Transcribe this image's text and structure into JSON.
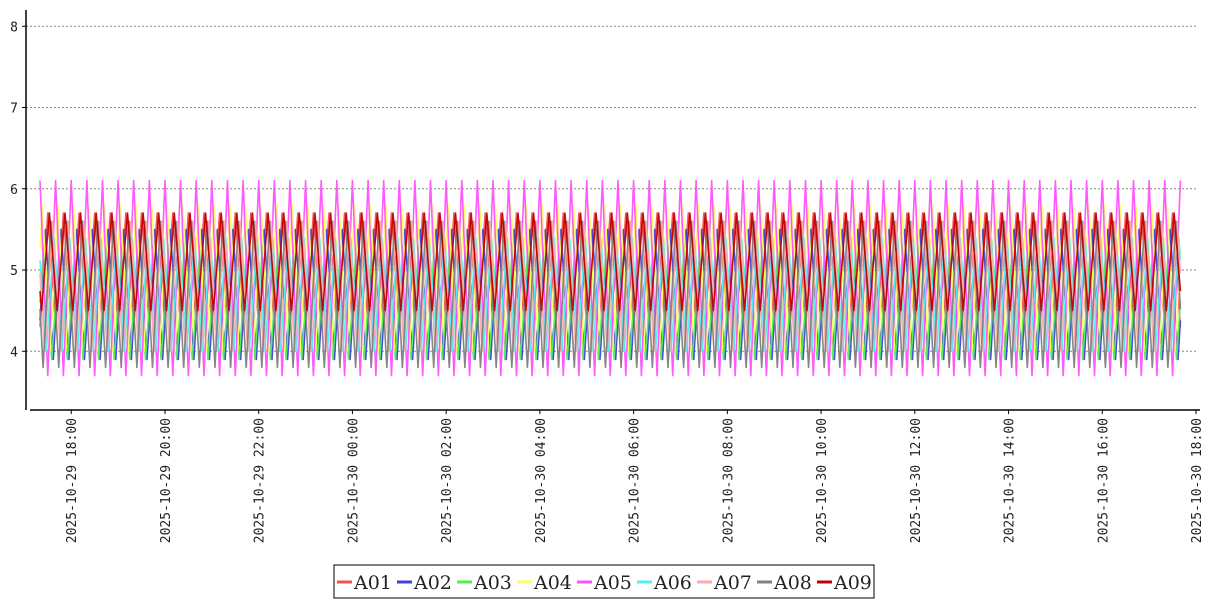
{
  "chart_data": {
    "type": "line",
    "title": "",
    "xlabel": "",
    "ylabel": "",
    "ylim": [
      3.4,
      8.2
    ],
    "y_ticks": [
      "4",
      "5",
      "6",
      "7",
      "8"
    ],
    "x_range": [
      "2025-10-29 17:20",
      "2025-10-30 18:00"
    ],
    "x_ticks": [
      "2025-10-29 18:00",
      "2025-10-29 20:00",
      "2025-10-29 22:00",
      "2025-10-30 00:00",
      "2025-10-30 02:00",
      "2025-10-30 04:00",
      "2025-10-30 06:00",
      "2025-10-30 08:00",
      "2025-10-30 10:00",
      "2025-10-30 12:00",
      "2025-10-30 14:00",
      "2025-10-30 16:00",
      "2025-10-30 18:00"
    ],
    "grid": "horizontal-dotted",
    "legend_position": "bottom-center",
    "series": [
      {
        "name": "A01",
        "color": "#f05050",
        "min": 4.3,
        "max": 5.7,
        "phase": 0.0
      },
      {
        "name": "A02",
        "color": "#4040e0",
        "min": 3.9,
        "max": 5.5,
        "phase": 0.15
      },
      {
        "name": "A03",
        "color": "#50f050",
        "min": 3.9,
        "max": 5.3,
        "phase": 0.25
      },
      {
        "name": "A04",
        "color": "#ffff60",
        "min": 4.0,
        "max": 5.8,
        "phase": 0.35
      },
      {
        "name": "A05",
        "color": "#ff50ff",
        "min": 3.7,
        "max": 6.1,
        "phase": 0.5
      },
      {
        "name": "A06",
        "color": "#50f0f0",
        "min": 4.0,
        "max": 5.4,
        "phase": 0.6
      },
      {
        "name": "A07",
        "color": "#ffaaaa",
        "min": 4.0,
        "max": 5.6,
        "phase": 0.7
      },
      {
        "name": "A08",
        "color": "#808080",
        "min": 3.8,
        "max": 5.6,
        "phase": 0.8
      },
      {
        "name": "A09",
        "color": "#c00000",
        "min": 4.5,
        "max": 5.7,
        "phase": 0.9
      }
    ]
  }
}
